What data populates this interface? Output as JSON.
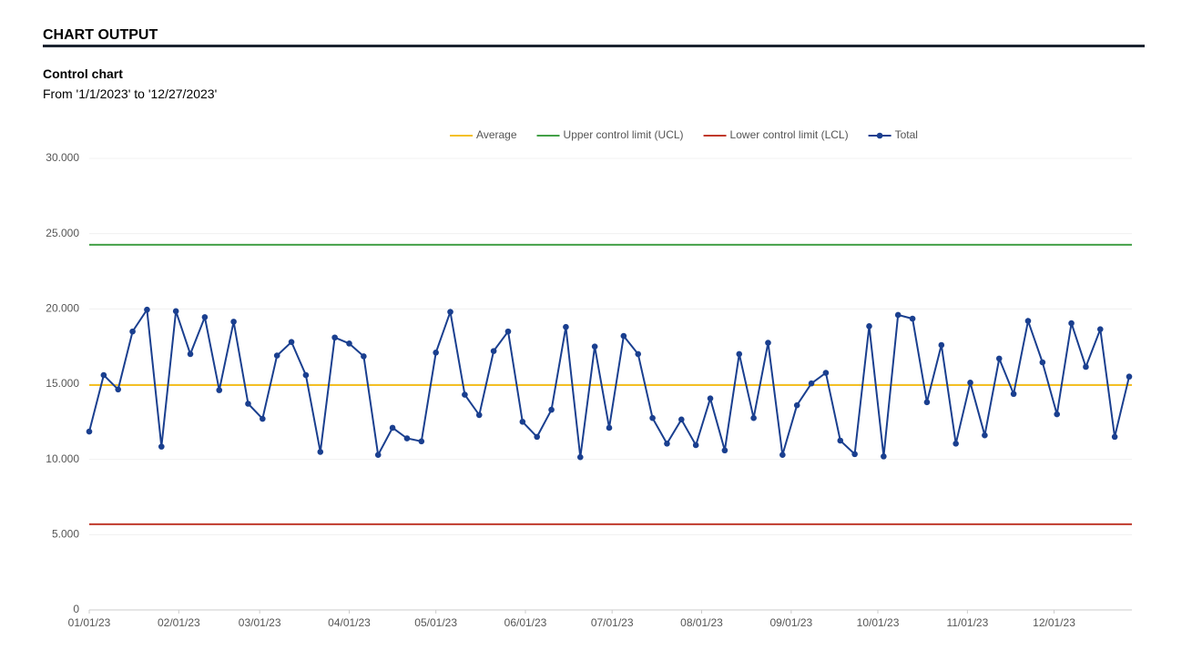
{
  "header": {
    "title": "CHART OUTPUT"
  },
  "chart_data": {
    "type": "line",
    "title": "Control chart",
    "subtitle": "From '1/1/2023' to '12/27/2023'",
    "lines": [
      {
        "name": "Average",
        "color": "#f4c025",
        "value": 14940
      },
      {
        "name": "Upper control limit (UCL)",
        "color": "#43a047",
        "value": 24260
      },
      {
        "name": "Lower control limit (LCL)",
        "color": "#c0392b",
        "value": 5690
      }
    ],
    "x": [
      "2023-01-01",
      "2023-01-06",
      "2023-01-11",
      "2023-01-16",
      "2023-01-21",
      "2023-01-26",
      "2023-01-31",
      "2023-02-05",
      "2023-02-10",
      "2023-02-15",
      "2023-02-20",
      "2023-02-25",
      "2023-03-02",
      "2023-03-07",
      "2023-03-12",
      "2023-03-17",
      "2023-03-22",
      "2023-03-27",
      "2023-04-01",
      "2023-04-06",
      "2023-04-11",
      "2023-04-16",
      "2023-04-21",
      "2023-04-26",
      "2023-05-01",
      "2023-05-06",
      "2023-05-11",
      "2023-05-16",
      "2023-05-21",
      "2023-05-26",
      "2023-05-31",
      "2023-06-05",
      "2023-06-10",
      "2023-06-15",
      "2023-06-20",
      "2023-06-25",
      "2023-06-30",
      "2023-07-05",
      "2023-07-10",
      "2023-07-15",
      "2023-07-20",
      "2023-07-25",
      "2023-07-30",
      "2023-08-04",
      "2023-08-09",
      "2023-08-14",
      "2023-08-19",
      "2023-08-24",
      "2023-08-29",
      "2023-09-03",
      "2023-09-08",
      "2023-09-13",
      "2023-09-18",
      "2023-09-23",
      "2023-09-28",
      "2023-10-03",
      "2023-10-08",
      "2023-10-13",
      "2023-10-18",
      "2023-10-23",
      "2023-10-28",
      "2023-11-02",
      "2023-11-07",
      "2023-11-12",
      "2023-11-17",
      "2023-11-22",
      "2023-11-27",
      "2023-12-02",
      "2023-12-07",
      "2023-12-12",
      "2023-12-17",
      "2023-12-22",
      "2023-12-27"
    ],
    "series": [
      {
        "name": "Total",
        "color": "#1a3f8f",
        "values": [
          11850,
          15600,
          14650,
          18500,
          19950,
          10850,
          19850,
          17000,
          19450,
          14600,
          19150,
          13700,
          12700,
          16900,
          17800,
          15600,
          10500,
          18100,
          17700,
          16850,
          10300,
          12100,
          11400,
          11200,
          17100,
          19800,
          14300,
          12950,
          17200,
          18500,
          12500,
          11500,
          13300,
          18800,
          10150,
          17500,
          12100,
          18200,
          17000,
          12750,
          11050,
          12650,
          10950,
          14050,
          10600,
          17000,
          12750,
          17750,
          10300,
          13600,
          15050,
          15750,
          11250,
          10350,
          18850,
          10200,
          19600,
          19350,
          13800,
          17600,
          11050,
          15100,
          11600,
          16700,
          14350,
          19200,
          16450,
          13000,
          19050,
          16150,
          18650,
          11500,
          15500
        ]
      }
    ],
    "xlim": [
      "2023-01-01",
      "2023-12-27"
    ],
    "xticks": [
      {
        "value": "2023-01-01",
        "label": "01/01/23"
      },
      {
        "value": "2023-02-01",
        "label": "02/01/23"
      },
      {
        "value": "2023-03-01",
        "label": "03/01/23"
      },
      {
        "value": "2023-04-01",
        "label": "04/01/23"
      },
      {
        "value": "2023-05-01",
        "label": "05/01/23"
      },
      {
        "value": "2023-06-01",
        "label": "06/01/23"
      },
      {
        "value": "2023-07-01",
        "label": "07/01/23"
      },
      {
        "value": "2023-08-01",
        "label": "08/01/23"
      },
      {
        "value": "2023-09-01",
        "label": "09/01/23"
      },
      {
        "value": "2023-10-01",
        "label": "10/01/23"
      },
      {
        "value": "2023-11-01",
        "label": "11/01/23"
      },
      {
        "value": "2023-12-01",
        "label": "12/01/23"
      }
    ],
    "ylim": [
      0,
      30000
    ],
    "yticks": [
      0,
      {
        "value": 5000,
        "label": "5.000"
      },
      {
        "value": 10000,
        "label": "10.000"
      },
      {
        "value": 15000,
        "label": "15.000"
      },
      {
        "value": 20000,
        "label": "20.000"
      },
      {
        "value": 25000,
        "label": "25.000"
      },
      {
        "value": 30000,
        "label": "30.000"
      }
    ],
    "grid": true,
    "legend": "top"
  }
}
